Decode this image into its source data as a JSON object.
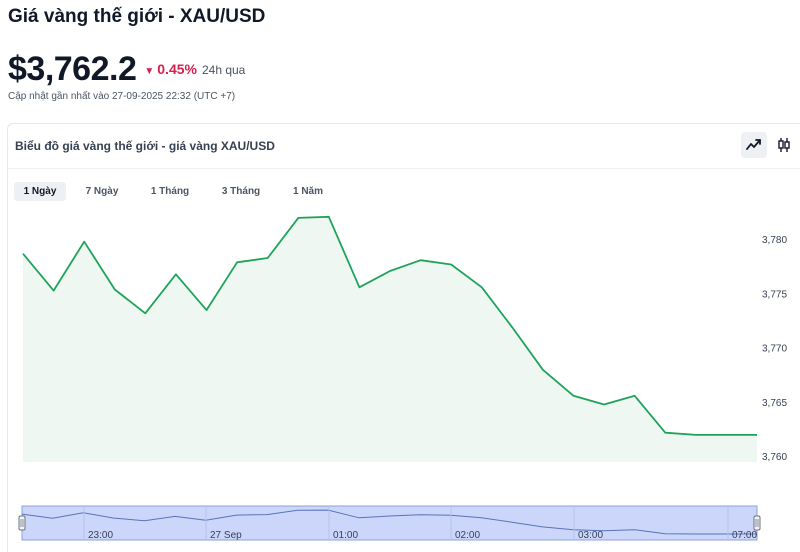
{
  "page": {
    "title": "Giá vàng thế giới - XAU/USD",
    "price": "$3,762.2",
    "change_arrow": "▼",
    "change_pct": "0.45%",
    "change_period": "24h qua",
    "updated": "Cập nhật gần nhất vào 27-09-2025 22:32 (UTC +7)"
  },
  "card": {
    "title": "Biểu đồ giá vàng thế giới - giá vàng XAU/USD",
    "chart_type_buttons": [
      {
        "name": "line-chart-icon",
        "active": true
      },
      {
        "name": "candlestick-icon",
        "active": false
      }
    ],
    "ranges": [
      {
        "label": "1 Ngày",
        "active": true
      },
      {
        "label": "7 Ngày",
        "active": false
      },
      {
        "label": "1 Tháng",
        "active": false
      },
      {
        "label": "3 Tháng",
        "active": false
      },
      {
        "label": "1 Năm",
        "active": false
      }
    ]
  },
  "colors": {
    "line": "#1fa35a",
    "area_fill": "#eef7f1",
    "down": "#d6204e",
    "navigator_fill": "#ccd6fb",
    "navigator_line": "#8aa0de"
  },
  "chart_data": {
    "type": "area",
    "title": "",
    "xlabel": "",
    "ylabel": "",
    "ylim": [
      3759.5,
      3783
    ],
    "y_ticks": [
      3760,
      3765,
      3770,
      3775,
      3780
    ],
    "y_tick_labels": [
      "3,760",
      "3,765",
      "3,770",
      "3,775",
      "3,780"
    ],
    "y_axis_position": "right",
    "grid": false,
    "series": [
      {
        "values": [
          3778.7,
          3775.3,
          3779.8,
          3775.4,
          3773.2,
          3776.8,
          3773.5,
          3777.9,
          3778.3,
          3782.0,
          3782.1,
          3775.6,
          3777.1,
          3778.1,
          3777.7,
          3775.6,
          3771.9,
          3768.0,
          3765.6,
          3764.8,
          3765.6,
          3762.2,
          3762.0,
          3762.0,
          3762.0
        ]
      }
    ],
    "navigator": {
      "time_labels": [
        "23:00",
        "27 Sep",
        "01:00",
        "02:00",
        "03:00",
        "07:00"
      ]
    }
  }
}
